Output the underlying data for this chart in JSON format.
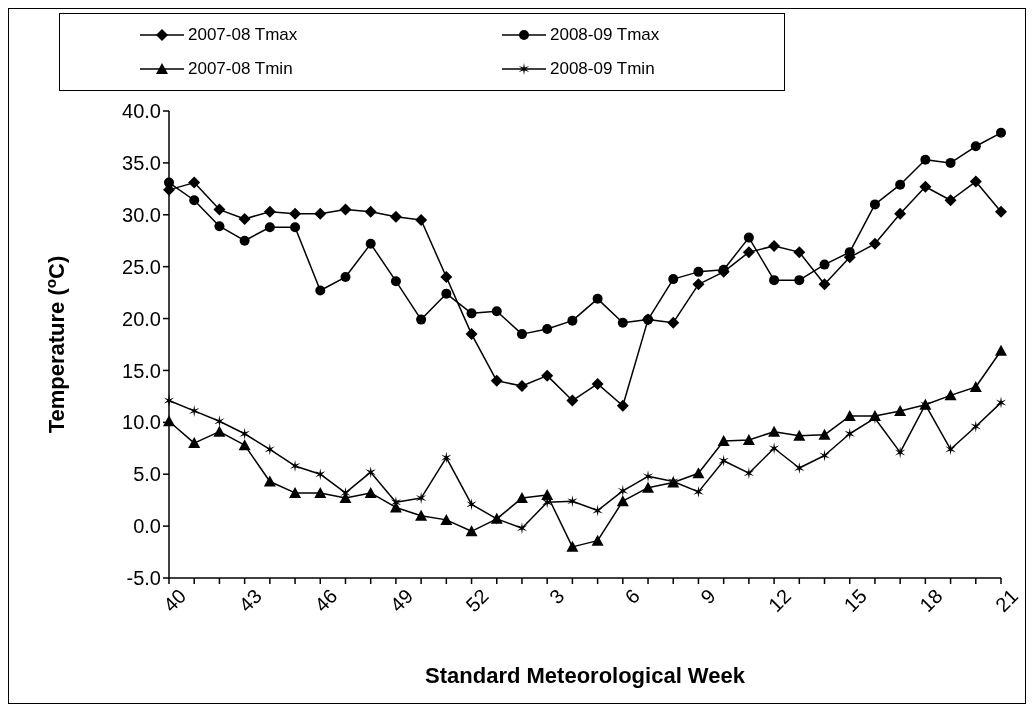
{
  "chart_data": {
    "type": "line",
    "xlabel": "Standard Meteorological Week",
    "ylabel": "Temperature ($^{o}$C)",
    "categories": [
      "40",
      null,
      null,
      "43",
      null,
      null,
      "46",
      null,
      null,
      "49",
      null,
      null,
      "52",
      null,
      null,
      "3",
      null,
      null,
      "6",
      null,
      null,
      "9",
      null,
      null,
      "12",
      null,
      null,
      "15",
      null,
      null,
      "18",
      null,
      null,
      "21"
    ],
    "series": [
      {
        "name": "2007-08 Tmax",
        "color": "#000000",
        "marker": "diamond",
        "values": [
          32.4,
          33.1,
          30.5,
          29.6,
          30.3,
          30.1,
          30.1,
          30.5,
          30.3,
          29.8,
          29.5,
          24.0,
          18.5,
          14.0,
          13.5,
          14.5,
          12.1,
          13.7,
          11.6,
          19.9,
          19.6,
          23.3,
          24.5,
          26.4,
          27.0,
          26.4,
          23.3,
          25.9,
          27.2,
          30.1,
          32.7,
          31.4,
          33.2,
          30.3
        ]
      },
      {
        "name": "2008-09 Tmax",
        "color": "#000000",
        "marker": "circle",
        "values": [
          33.1,
          31.4,
          28.9,
          27.5,
          28.8,
          28.8,
          22.7,
          24.0,
          27.2,
          23.6,
          19.9,
          22.4,
          20.5,
          20.7,
          18.5,
          19.0,
          19.8,
          21.9,
          19.6,
          19.9,
          23.8,
          24.5,
          24.7,
          27.8,
          23.7,
          23.7,
          25.2,
          26.4,
          31.0,
          32.9,
          35.3,
          35.0,
          36.6,
          37.9
        ]
      },
      {
        "name": "2007-08 Tmin",
        "color": "#000000",
        "marker": "triangle",
        "values": [
          10.1,
          8.0,
          9.1,
          7.8,
          4.3,
          3.2,
          3.2,
          2.7,
          3.2,
          1.8,
          1.0,
          0.6,
          -0.5,
          0.7,
          2.7,
          3.0,
          -2.0,
          -1.4,
          2.4,
          3.7,
          4.2,
          5.1,
          8.2,
          8.3,
          9.1,
          8.7,
          8.8,
          10.6,
          10.6,
          11.1,
          11.7,
          12.6,
          13.4,
          16.9
        ]
      },
      {
        "name": "2008-09 Tmin",
        "color": "#000000",
        "marker": "cross",
        "values": [
          12.1,
          11.1,
          10.1,
          8.9,
          7.4,
          5.8,
          5.0,
          3.2,
          5.2,
          2.3,
          2.7,
          6.6,
          2.1,
          0.7,
          -0.2,
          2.3,
          2.4,
          1.5,
          3.4,
          4.8,
          4.3,
          3.3,
          6.3,
          5.1,
          7.5,
          5.6,
          6.8,
          8.9,
          10.4,
          7.1,
          11.7,
          7.4,
          9.6,
          11.9
        ]
      }
    ],
    "ylim": [
      -5,
      40
    ],
    "yticks": [
      {
        "value": -5,
        "label": "-5.0"
      },
      {
        "value": 0,
        "label": "0.0"
      },
      {
        "value": 5,
        "label": "5.0"
      },
      {
        "value": 10,
        "label": "10.0"
      },
      {
        "value": 15,
        "label": "15.0"
      },
      {
        "value": 20,
        "label": "20.0"
      },
      {
        "value": 25,
        "label": "25.0"
      },
      {
        "value": 30,
        "label": "30.0"
      },
      {
        "value": 35,
        "label": "35.0"
      },
      {
        "value": 40,
        "label": "40.0"
      }
    ],
    "grid": false,
    "legend": "top",
    "line_style": "solid"
  }
}
